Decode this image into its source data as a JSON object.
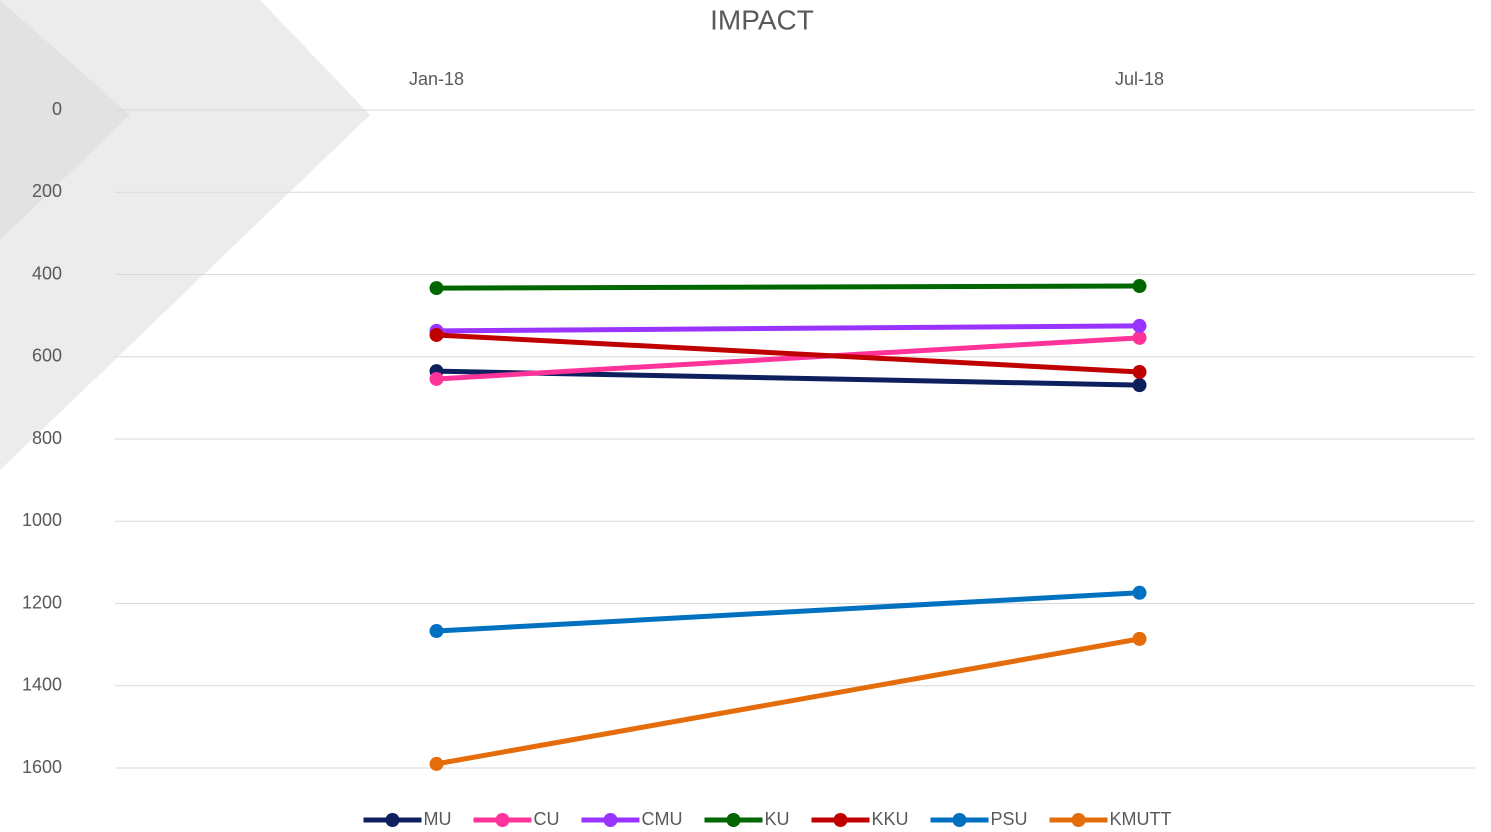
{
  "chart_data": {
    "type": "line",
    "title": "IMPACT",
    "categories": [
      "Jan-18",
      "Jul-18"
    ],
    "series": [
      {
        "name": "MU",
        "color": "#0d1f5c",
        "values": [
          635,
          669
        ]
      },
      {
        "name": "CU",
        "color": "#ff3399",
        "values": [
          654,
          554
        ]
      },
      {
        "name": "CMU",
        "color": "#9933ff",
        "values": [
          537,
          525
        ]
      },
      {
        "name": "KU",
        "color": "#006600",
        "values": [
          433,
          428
        ]
      },
      {
        "name": "KKU",
        "color": "#c00000",
        "values": [
          547,
          637
        ]
      },
      {
        "name": "PSU",
        "color": "#0070c0",
        "values": [
          1267,
          1174
        ]
      },
      {
        "name": "KMUTT",
        "color": "#e46c0a",
        "values": [
          1590,
          1286
        ]
      }
    ],
    "ylim": [
      0,
      1600
    ],
    "y_inverted": true,
    "yticks": [
      0,
      200,
      400,
      600,
      800,
      1000,
      1200,
      1400,
      1600
    ],
    "grid": true,
    "legend": "bottom"
  }
}
